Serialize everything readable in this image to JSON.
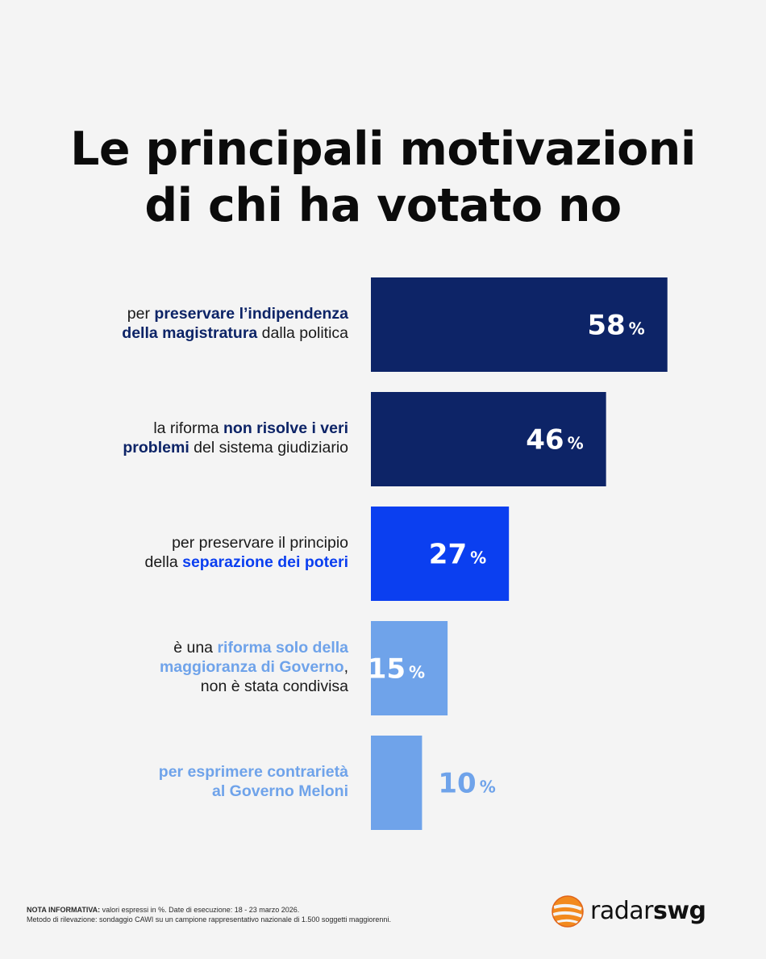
{
  "title": {
    "line1": "Le principali motivazioni",
    "line2": "di chi ha votato no"
  },
  "chart_data": {
    "type": "bar",
    "orientation": "horizontal",
    "unit": "%",
    "categories": [
      [
        {
          "text": "per ",
          "bold": false
        },
        {
          "text": "preservare l’indipendenza",
          "bold": true
        },
        {
          "text": "\n",
          "bold": false
        },
        {
          "text": "della magistratura",
          "bold": true
        },
        {
          "text": " dalla politica",
          "bold": false
        }
      ],
      [
        {
          "text": "la riforma ",
          "bold": false
        },
        {
          "text": "non risolve i veri",
          "bold": true
        },
        {
          "text": "\n",
          "bold": false
        },
        {
          "text": "problemi",
          "bold": true
        },
        {
          "text": " del sistema giudiziario",
          "bold": false
        }
      ],
      [
        {
          "text": "per preservare il principio",
          "bold": false
        },
        {
          "text": "\n",
          "bold": false
        },
        {
          "text": "della ",
          "bold": false
        },
        {
          "text": "separazione dei poteri",
          "bold": true
        }
      ],
      [
        {
          "text": "è una ",
          "bold": false
        },
        {
          "text": "riforma solo della",
          "bold": true
        },
        {
          "text": "\n",
          "bold": false
        },
        {
          "text": "maggioranza di Governo",
          "bold": true
        },
        {
          "text": ",",
          "bold": false
        },
        {
          "text": "\n",
          "bold": false
        },
        {
          "text": "non è stata condivisa",
          "bold": false
        }
      ],
      [
        {
          "text": "per esprimere contrarietà",
          "bold": true
        },
        {
          "text": "\n",
          "bold": false
        },
        {
          "text": "al Governo Meloni",
          "bold": true
        }
      ]
    ],
    "values": [
      58,
      46,
      27,
      15,
      10
    ],
    "value_labels": [
      "58",
      "46",
      "27",
      "15",
      "10"
    ],
    "colors": [
      "#0d2467",
      "#0d2467",
      "#0b3ff0",
      "#6fa3ea",
      "#6fa3ea"
    ],
    "highlight_colors": [
      "#0d2467",
      "#0d2467",
      "#0b3ff0",
      "#6fa3ea",
      "#6fa3ea"
    ],
    "label_inside": [
      true,
      true,
      true,
      true,
      false
    ],
    "grid": false,
    "legend": "none"
  },
  "footnote": {
    "line1_bold": "NOTA INFORMATIVA:",
    "line1_rest": " valori espressi in %. Date di esecuzione: 18 - 23 marzo 2026.",
    "line2": "Metodo di rilevazione: sondaggio CAWI su un campione rappresentativo nazionale di 1.500 soggetti maggiorenni."
  },
  "logo": {
    "part1": "radar",
    "part2": "swg",
    "colors": {
      "mark": "#f28a1e",
      "mark_dark": "#e0641a"
    }
  }
}
